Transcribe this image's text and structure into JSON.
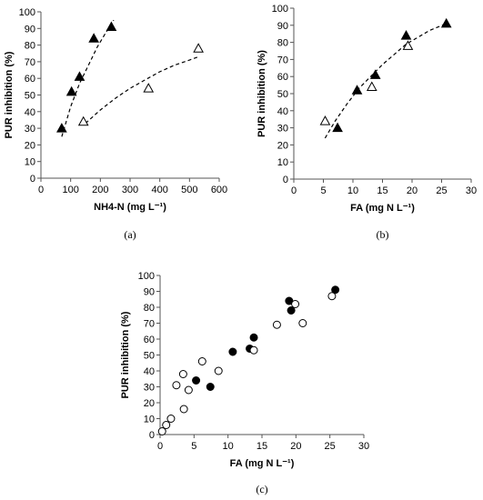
{
  "chart_data": [
    {
      "type": "scatter",
      "panel_label": "(a)",
      "xlabel": "NH4-N (mg L⁻¹)",
      "ylabel": "PUR inhibition (%)",
      "xlim": [
        0,
        600
      ],
      "ylim": [
        0,
        100
      ],
      "xticks": [
        0,
        100,
        200,
        300,
        400,
        500,
        600
      ],
      "yticks": [
        0,
        10,
        20,
        30,
        40,
        50,
        60,
        70,
        80,
        90,
        100
      ],
      "series": [
        {
          "marker": "filled-triangle",
          "points": [
            [
              70,
              30
            ],
            [
              103,
              52
            ],
            [
              130,
              61
            ],
            [
              178,
              84
            ],
            [
              237,
              91
            ]
          ],
          "trendline": [
            [
              70,
              25
            ],
            [
              100,
              43
            ],
            [
              130,
              57
            ],
            [
              160,
              68
            ],
            [
              190,
              79
            ],
            [
              220,
              88
            ],
            [
              245,
              95
            ]
          ]
        },
        {
          "marker": "open-triangle",
          "points": [
            [
              143,
              34
            ],
            [
              362,
              54
            ],
            [
              530,
              78
            ]
          ],
          "trendline": [
            [
              150,
              33
            ],
            [
              200,
              41
            ],
            [
              250,
              48
            ],
            [
              300,
              54
            ],
            [
              350,
              59
            ],
            [
              400,
              64
            ],
            [
              450,
              68
            ],
            [
              500,
              71
            ],
            [
              530,
              73
            ]
          ]
        }
      ]
    },
    {
      "type": "scatter",
      "panel_label": "(b)",
      "xlabel": "FA (mg N L⁻¹)",
      "ylabel": "PUR inhibition (%)",
      "xlim": [
        0,
        30
      ],
      "ylim": [
        0,
        100
      ],
      "xticks": [
        0,
        5,
        10,
        15,
        20,
        25,
        30
      ],
      "yticks": [
        0,
        10,
        20,
        30,
        40,
        50,
        60,
        70,
        80,
        90,
        100
      ],
      "series": [
        {
          "marker": "filled-triangle",
          "points": [
            [
              7.4,
              30
            ],
            [
              10.7,
              52
            ],
            [
              13.8,
              61
            ],
            [
              19.0,
              84
            ],
            [
              25.8,
              91
            ]
          ]
        },
        {
          "marker": "open-triangle",
          "points": [
            [
              5.3,
              34
            ],
            [
              13.2,
              54
            ],
            [
              19.3,
              78
            ]
          ]
        }
      ],
      "trendline": [
        [
          5.3,
          24
        ],
        [
          7,
          34
        ],
        [
          9,
          44
        ],
        [
          11,
          53
        ],
        [
          13,
          60
        ],
        [
          15,
          67
        ],
        [
          17,
          73
        ],
        [
          19,
          79
        ],
        [
          21,
          83
        ],
        [
          23,
          87
        ],
        [
          25.8,
          91
        ]
      ]
    },
    {
      "type": "scatter",
      "panel_label": "(c)",
      "xlabel": "FA (mg N L⁻¹)",
      "ylabel": "PUR inhibition (%)",
      "xlim": [
        0,
        30
      ],
      "ylim": [
        0,
        100
      ],
      "xticks": [
        0,
        5,
        10,
        15,
        20,
        25,
        30
      ],
      "yticks": [
        0,
        10,
        20,
        30,
        40,
        50,
        60,
        70,
        80,
        90,
        100
      ],
      "series": [
        {
          "marker": "filled-circle",
          "points": [
            [
              5.3,
              34
            ],
            [
              7.4,
              30
            ],
            [
              10.7,
              52
            ],
            [
              13.2,
              54
            ],
            [
              13.8,
              61
            ],
            [
              19.0,
              84
            ],
            [
              19.3,
              78
            ],
            [
              25.8,
              91
            ]
          ]
        },
        {
          "marker": "open-circle",
          "points": [
            [
              0.3,
              2
            ],
            [
              0.9,
              6
            ],
            [
              1.6,
              10
            ],
            [
              2.4,
              31
            ],
            [
              3.4,
              38
            ],
            [
              3.5,
              16
            ],
            [
              4.2,
              28
            ],
            [
              6.2,
              46
            ],
            [
              8.6,
              40
            ],
            [
              13.8,
              53
            ],
            [
              17.2,
              69
            ],
            [
              19.9,
              82
            ],
            [
              21.0,
              70
            ],
            [
              25.3,
              87
            ]
          ]
        }
      ]
    }
  ]
}
